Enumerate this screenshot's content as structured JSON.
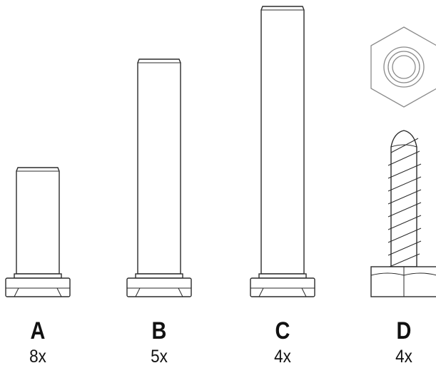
{
  "parts": [
    {
      "letter": "A",
      "quantity": "8x",
      "icon": "bolt-short-icon"
    },
    {
      "letter": "B",
      "quantity": "5x",
      "icon": "bolt-medium-icon"
    },
    {
      "letter": "C",
      "quantity": "4x",
      "icon": "bolt-long-icon"
    },
    {
      "letter": "D",
      "quantity": "4x",
      "icon": "lag-screw-with-washer-icon"
    }
  ],
  "colors": {
    "line": "#2b2b2b",
    "washer": "#8a8a8a",
    "text": "#111111"
  }
}
